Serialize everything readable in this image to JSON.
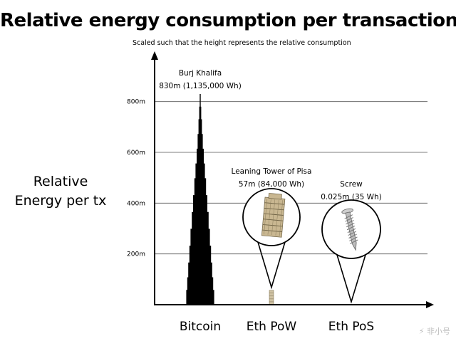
{
  "chart_data": {
    "type": "bar",
    "title": "Relative energy consumption per transaction",
    "subtitle": "Scaled such that the height represents the relative consumption",
    "ylabel": "Relative\nEnergy per tx",
    "xlabel": "",
    "y_unit": "m",
    "ylim": [
      0,
      800
    ],
    "y_ticks": [
      "200m",
      "400m",
      "600m",
      "800m"
    ],
    "grid": true,
    "categories": [
      "Bitcoin",
      "Eth PoW",
      "Eth PoS"
    ],
    "values": [
      830,
      57,
      0.025
    ],
    "energy_wh": [
      1135000,
      84000,
      35
    ],
    "annotations": [
      {
        "name": "Burj Khalifa",
        "detail": "830m (1,135,000 Wh)",
        "icon": "skyscraper-silhouette"
      },
      {
        "name": "Leaning Tower of Pisa",
        "detail": "57m (84,000 Wh)",
        "icon": "leaning-tower-icon"
      },
      {
        "name": "Screw",
        "detail": "0.025m (35 Wh)",
        "icon": "screw-icon"
      }
    ],
    "colors": {
      "axis": "#000000",
      "grid": "#555555",
      "bar": "#000000",
      "tower": "#c9b791"
    }
  },
  "watermark": "⚡ 非小号"
}
